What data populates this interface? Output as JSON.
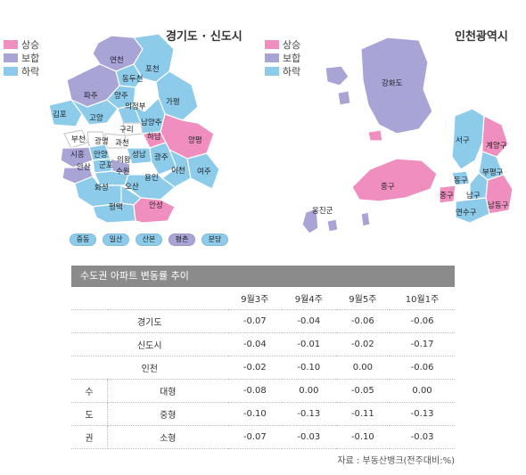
{
  "gyeonggi": {
    "title": "경기도 · 신도시",
    "legend": [
      {
        "label": "상승",
        "color": "#f08fbf"
      },
      {
        "label": "보합",
        "color": "#a9a4d6"
      },
      {
        "label": "하락",
        "color": "#8dcbeb"
      }
    ],
    "regions": [
      "연천",
      "포천",
      "동두천",
      "파주",
      "양주",
      "가평",
      "의정부",
      "김포",
      "고양",
      "남양주",
      "구리",
      "부천",
      "광명",
      "과천",
      "하남",
      "양평",
      "시흥",
      "안양",
      "성남",
      "광주",
      "안산",
      "군포",
      "의왕",
      "수원",
      "이천",
      "여주",
      "용인",
      "화성",
      "오산",
      "평택",
      "안성"
    ],
    "new_towns": [
      {
        "label": "중동",
        "color": "#8dcbeb"
      },
      {
        "label": "일산",
        "color": "#8dcbeb"
      },
      {
        "label": "산본",
        "color": "#8dcbeb"
      },
      {
        "label": "평촌",
        "color": "#a9a4d6"
      },
      {
        "label": "분당",
        "color": "#8dcbeb"
      }
    ]
  },
  "incheon": {
    "title": "인천광역시",
    "legend": [
      {
        "label": "상승",
        "color": "#f08fbf"
      },
      {
        "label": "보합",
        "color": "#a9a4d6"
      },
      {
        "label": "하락",
        "color": "#8dcbeb"
      }
    ],
    "regions": [
      "강화도",
      "서구",
      "계양구",
      "부평구",
      "중구",
      "동구",
      "남구",
      "중구",
      "남동구",
      "연수구",
      "옹진군"
    ]
  },
  "table": {
    "title": "수도권 아파트 변동률 추이",
    "columns": [
      "9월3주",
      "9월4주",
      "9월5주",
      "10월1주"
    ],
    "rows": [
      {
        "label": "경기도",
        "values": [
          "-0.07",
          "-0.04",
          "-0.06",
          "-0.06"
        ]
      },
      {
        "label": "신도시",
        "values": [
          "-0.04",
          "-0.01",
          "-0.02",
          "-0.17"
        ]
      },
      {
        "label": "인천",
        "values": [
          "-0.02",
          "-0.10",
          "0.00",
          "-0.06"
        ]
      }
    ],
    "group_label": [
      "수",
      "도",
      "권"
    ],
    "group_rows": [
      {
        "label": "대형",
        "values": [
          "-0.08",
          "0.00",
          "-0.05",
          "0.00"
        ]
      },
      {
        "label": "중형",
        "values": [
          "-0.10",
          "-0.13",
          "-0.11",
          "-0.13"
        ]
      },
      {
        "label": "소형",
        "values": [
          "-0.07",
          "-0.03",
          "-0.10",
          "-0.03"
        ]
      }
    ],
    "source": "자료 : 부동산뱅크(전주대비:%)"
  }
}
